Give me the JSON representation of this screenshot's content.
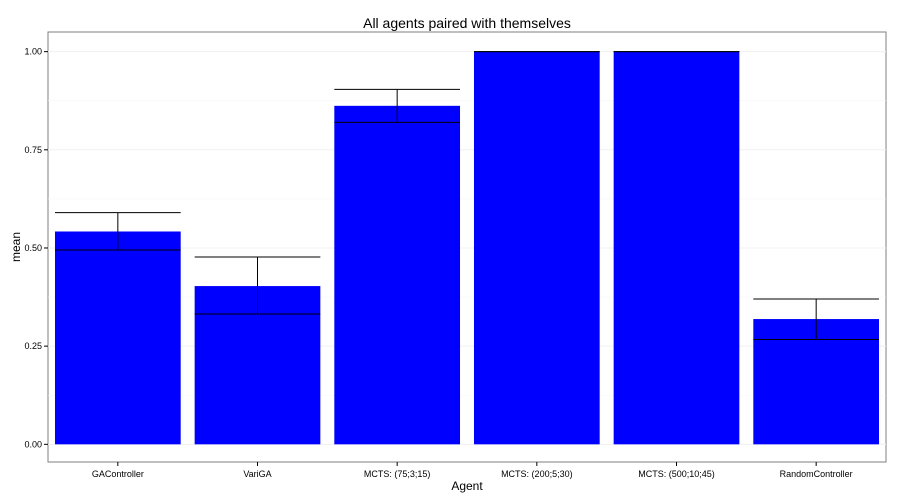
{
  "chart_data": {
    "type": "bar",
    "title": "All agents paired with themselves",
    "xlabel": "Agent",
    "ylabel": "mean",
    "ylim": [
      -0.045,
      1.05
    ],
    "yticks": [
      0.0,
      0.25,
      0.5,
      0.75,
      1.0
    ],
    "ytick_labels": [
      "0.00",
      "0.25",
      "0.50",
      "0.75",
      "1.00"
    ],
    "grid": true,
    "bar_color": "#0000ff",
    "categories": [
      "GAController",
      "VariGA",
      "MCTS: (75;3;15)",
      "MCTS: (200;5;30)",
      "MCTS: (500;10;45)",
      "RandomController"
    ],
    "values": [
      0.542,
      0.403,
      0.862,
      1.0,
      1.0,
      0.319
    ],
    "error_lower": [
      0.495,
      0.332,
      0.82,
      1.0,
      1.0,
      0.267
    ],
    "error_upper": [
      0.59,
      0.477,
      0.904,
      1.0,
      1.0,
      0.37
    ]
  }
}
